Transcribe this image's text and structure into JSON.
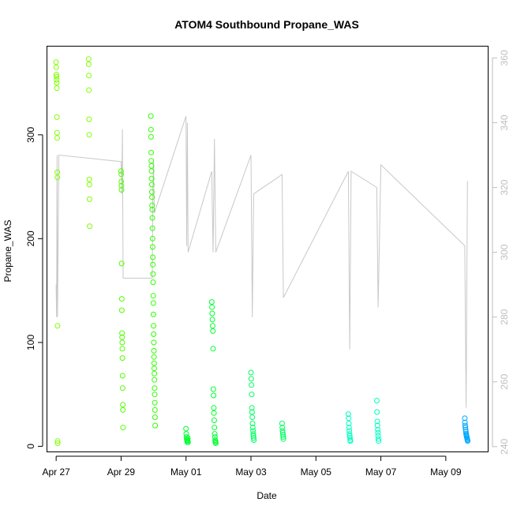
{
  "chart_data": {
    "type": "scatter",
    "title": "ATOM4 Southbound Propane_WAS",
    "xlabel": "Date",
    "ylabel": "Propane_WAS",
    "x_ticks": [
      "Apr 27",
      "Apr 29",
      "May 01",
      "May 03",
      "May 05",
      "May 07",
      "May 09"
    ],
    "y_ticks": [
      "0",
      "100",
      "200",
      "300"
    ],
    "y2_ticks": [
      "240",
      "260",
      "280",
      "300",
      "320",
      "340",
      "360"
    ],
    "xlim": [
      "2018-04-26T17:30",
      "2018-05-10T07:00"
    ],
    "ylim": [
      -5,
      385
    ],
    "y2lim": [
      238.5,
      363.5
    ],
    "grid": false,
    "legend": "none",
    "colors": {
      "axis": "#000000",
      "secondary_axis": "#bebebe",
      "trace": "#c8c8c8"
    },
    "series": [
      {
        "color": "#80ff00",
        "points": [
          [
            "2018-04-27T00:00",
            370
          ],
          [
            "2018-04-27T00:05",
            365
          ],
          [
            "2018-04-27T00:10",
            358
          ],
          [
            "2018-04-27T00:15",
            356
          ],
          [
            "2018-04-27T00:20",
            353
          ],
          [
            "2018-04-27T00:25",
            350
          ],
          [
            "2018-04-27T00:30",
            345
          ],
          [
            "2018-04-27T00:35",
            317
          ],
          [
            "2018-04-27T00:40",
            302
          ],
          [
            "2018-04-27T00:45",
            297
          ],
          [
            "2018-04-27T00:50",
            264
          ],
          [
            "2018-04-27T00:55",
            259
          ],
          [
            "2018-04-27T01:00",
            116
          ],
          [
            "2018-04-27T01:05",
            5
          ],
          [
            "2018-04-27T01:10",
            3
          ],
          [
            "2018-04-28T00:00",
            373
          ],
          [
            "2018-04-28T00:05",
            368
          ],
          [
            "2018-04-28T00:10",
            357
          ],
          [
            "2018-04-28T00:15",
            343
          ],
          [
            "2018-04-28T00:20",
            315
          ],
          [
            "2018-04-28T00:25",
            300
          ],
          [
            "2018-04-28T00:30",
            257
          ],
          [
            "2018-04-28T00:35",
            252
          ],
          [
            "2018-04-28T00:40",
            238
          ],
          [
            "2018-04-28T00:45",
            212
          ]
        ]
      },
      {
        "color": "#50ff00",
        "points": [
          [
            "2018-04-29T00:00",
            265
          ],
          [
            "2018-04-29T00:05",
            262
          ],
          [
            "2018-04-29T00:10",
            255
          ],
          [
            "2018-04-29T00:15",
            251
          ],
          [
            "2018-04-29T00:20",
            247
          ],
          [
            "2018-04-29T00:25",
            176
          ],
          [
            "2018-04-29T00:30",
            142
          ],
          [
            "2018-04-29T00:35",
            131
          ],
          [
            "2018-04-29T00:40",
            109
          ],
          [
            "2018-04-29T00:45",
            105
          ],
          [
            "2018-04-29T00:50",
            100
          ],
          [
            "2018-04-29T00:55",
            94
          ],
          [
            "2018-04-29T01:00",
            85
          ],
          [
            "2018-04-29T01:05",
            68
          ],
          [
            "2018-04-29T01:10",
            56
          ],
          [
            "2018-04-29T01:15",
            40
          ],
          [
            "2018-04-29T01:20",
            35
          ],
          [
            "2018-04-29T01:25",
            18
          ]
        ]
      },
      {
        "color": "#30ff00",
        "points": [
          [
            "2018-04-29T22:00",
            318
          ],
          [
            "2018-04-29T22:05",
            305
          ],
          [
            "2018-04-29T22:10",
            298
          ],
          [
            "2018-04-29T22:15",
            283
          ],
          [
            "2018-04-29T22:20",
            275
          ],
          [
            "2018-04-29T22:25",
            270
          ],
          [
            "2018-04-29T22:30",
            265
          ],
          [
            "2018-04-29T22:35",
            258
          ],
          [
            "2018-04-29T22:40",
            252
          ],
          [
            "2018-04-29T22:45",
            245
          ],
          [
            "2018-04-29T22:50",
            240
          ],
          [
            "2018-04-29T22:55",
            232
          ],
          [
            "2018-04-29T23:00",
            228
          ],
          [
            "2018-04-29T23:05",
            220
          ],
          [
            "2018-04-29T23:10",
            210
          ],
          [
            "2018-04-29T23:15",
            200
          ],
          [
            "2018-04-29T23:20",
            192
          ],
          [
            "2018-04-29T23:25",
            182
          ],
          [
            "2018-04-29T23:30",
            175
          ],
          [
            "2018-04-29T23:35",
            166
          ],
          [
            "2018-04-29T23:40",
            158
          ],
          [
            "2018-04-29T23:45",
            145
          ],
          [
            "2018-04-29T23:50",
            138
          ],
          [
            "2018-04-29T23:55",
            127
          ],
          [
            "2018-04-30T00:00",
            116
          ],
          [
            "2018-04-30T00:05",
            108
          ],
          [
            "2018-04-30T00:10",
            100
          ],
          [
            "2018-04-30T00:15",
            92
          ],
          [
            "2018-04-30T00:20",
            86
          ],
          [
            "2018-04-30T00:25",
            80
          ],
          [
            "2018-04-30T00:30",
            75
          ],
          [
            "2018-04-30T00:35",
            70
          ],
          [
            "2018-04-30T00:40",
            64
          ],
          [
            "2018-04-30T00:45",
            56
          ],
          [
            "2018-04-30T00:50",
            50
          ],
          [
            "2018-04-30T00:55",
            42
          ],
          [
            "2018-04-30T01:00",
            35
          ],
          [
            "2018-04-30T01:05",
            28
          ],
          [
            "2018-04-30T01:10",
            20
          ]
        ]
      },
      {
        "color": "#00ff30",
        "points": [
          [
            "2018-05-01T00:00",
            17
          ],
          [
            "2018-05-01T00:10",
            12
          ],
          [
            "2018-05-01T00:20",
            9
          ],
          [
            "2018-05-01T00:30",
            7
          ],
          [
            "2018-05-01T00:40",
            6
          ],
          [
            "2018-05-01T00:50",
            5
          ],
          [
            "2018-05-01T01:00",
            4
          ],
          [
            "2018-05-01T01:10",
            6
          ],
          [
            "2018-05-01T01:20",
            8
          ],
          [
            "2018-05-01T01:30",
            4
          ],
          [
            "2018-05-01T19:00",
            139
          ],
          [
            "2018-05-01T19:10",
            134
          ],
          [
            "2018-05-01T19:20",
            128
          ],
          [
            "2018-05-01T19:30",
            122
          ],
          [
            "2018-05-01T19:40",
            116
          ],
          [
            "2018-05-01T19:50",
            111
          ],
          [
            "2018-05-01T20:00",
            94
          ],
          [
            "2018-05-01T20:10",
            55
          ],
          [
            "2018-05-01T20:20",
            49
          ],
          [
            "2018-05-01T20:30",
            37
          ],
          [
            "2018-05-01T20:40",
            32
          ],
          [
            "2018-05-01T20:50",
            25
          ],
          [
            "2018-05-01T21:00",
            18
          ],
          [
            "2018-05-01T21:10",
            12
          ],
          [
            "2018-05-01T21:20",
            9
          ],
          [
            "2018-05-01T21:30",
            6
          ],
          [
            "2018-05-01T21:40",
            4
          ],
          [
            "2018-05-01T21:50",
            5
          ],
          [
            "2018-05-01T22:00",
            3
          ]
        ]
      },
      {
        "color": "#00ff60",
        "points": [
          [
            "2018-05-03T00:00",
            71
          ],
          [
            "2018-05-03T00:10",
            65
          ],
          [
            "2018-05-03T00:20",
            59
          ],
          [
            "2018-05-03T00:30",
            50
          ],
          [
            "2018-05-03T00:40",
            37
          ],
          [
            "2018-05-03T00:50",
            33
          ],
          [
            "2018-05-03T01:00",
            28
          ],
          [
            "2018-05-03T01:10",
            22
          ],
          [
            "2018-05-03T01:20",
            18
          ],
          [
            "2018-05-03T01:30",
            15
          ],
          [
            "2018-05-03T01:40",
            12
          ],
          [
            "2018-05-03T01:50",
            10
          ],
          [
            "2018-05-03T02:00",
            8
          ],
          [
            "2018-05-03T02:10",
            6
          ],
          [
            "2018-05-03T23:00",
            22
          ],
          [
            "2018-05-03T23:10",
            18
          ],
          [
            "2018-05-03T23:20",
            15
          ],
          [
            "2018-05-03T23:30",
            13
          ],
          [
            "2018-05-03T23:40",
            11
          ],
          [
            "2018-05-03T23:50",
            9
          ],
          [
            "2018-05-04T00:00",
            7
          ]
        ]
      },
      {
        "color": "#00ffc0",
        "points": [
          [
            "2018-05-06T00:00",
            31
          ],
          [
            "2018-05-06T00:10",
            27
          ],
          [
            "2018-05-06T00:20",
            22
          ],
          [
            "2018-05-06T00:30",
            18
          ],
          [
            "2018-05-06T00:40",
            15
          ],
          [
            "2018-05-06T00:50",
            12
          ],
          [
            "2018-05-06T01:00",
            10
          ],
          [
            "2018-05-06T01:10",
            8
          ],
          [
            "2018-05-06T01:20",
            6
          ],
          [
            "2018-05-06T01:30",
            5
          ],
          [
            "2018-05-06T21:00",
            44
          ],
          [
            "2018-05-06T21:10",
            33
          ],
          [
            "2018-05-06T21:20",
            24
          ],
          [
            "2018-05-06T21:30",
            20
          ],
          [
            "2018-05-06T21:40",
            16
          ],
          [
            "2018-05-06T21:50",
            13
          ],
          [
            "2018-05-06T22:00",
            10
          ],
          [
            "2018-05-06T22:10",
            7
          ],
          [
            "2018-05-06T22:20",
            5
          ]
        ]
      },
      {
        "color": "#00a8ff",
        "points": [
          [
            "2018-05-09T14:00",
            27
          ],
          [
            "2018-05-09T14:10",
            23
          ],
          [
            "2018-05-09T14:20",
            20
          ],
          [
            "2018-05-09T14:30",
            18
          ],
          [
            "2018-05-09T14:40",
            16
          ],
          [
            "2018-05-09T14:50",
            14
          ],
          [
            "2018-05-09T15:00",
            12
          ],
          [
            "2018-05-09T15:10",
            11
          ],
          [
            "2018-05-09T15:20",
            10
          ],
          [
            "2018-05-09T15:30",
            9
          ],
          [
            "2018-05-09T15:40",
            8
          ],
          [
            "2018-05-09T15:50",
            7
          ],
          [
            "2018-05-09T16:00",
            6
          ],
          [
            "2018-05-09T16:10",
            5
          ]
        ]
      }
    ],
    "trace": {
      "axis": "y2",
      "points": [
        [
          "2018-04-27T00:00",
          290
        ],
        [
          "2018-04-27T00:20",
          280
        ],
        [
          "2018-04-27T00:40",
          330
        ],
        [
          "2018-04-27T01:00",
          280
        ],
        [
          "2018-04-27T02:00",
          330
        ],
        [
          "2018-04-29T00:00",
          328
        ],
        [
          "2018-04-29T00:30",
          318
        ],
        [
          "2018-04-29T01:00",
          338
        ],
        [
          "2018-04-29T01:30",
          292
        ],
        [
          "2018-04-29T23:00",
          292
        ],
        [
          "2018-04-29T23:30",
          320
        ],
        [
          "2018-04-30T00:00",
          328
        ],
        [
          "2018-04-30T00:30",
          312
        ],
        [
          "2018-05-01T00:00",
          342
        ],
        [
          "2018-05-01T00:30",
          302
        ],
        [
          "2018-05-01T01:00",
          340
        ],
        [
          "2018-05-01T01:30",
          300
        ],
        [
          "2018-05-01T19:00",
          325
        ],
        [
          "2018-05-01T20:00",
          300
        ],
        [
          "2018-05-01T21:00",
          335
        ],
        [
          "2018-05-01T22:00",
          300
        ],
        [
          "2018-05-03T00:00",
          330
        ],
        [
          "2018-05-03T01:00",
          280
        ],
        [
          "2018-05-03T02:00",
          318
        ],
        [
          "2018-05-03T23:00",
          324
        ],
        [
          "2018-05-04T00:00",
          286
        ],
        [
          "2018-05-06T00:00",
          325
        ],
        [
          "2018-05-06T01:00",
          270
        ],
        [
          "2018-05-06T02:00",
          325
        ],
        [
          "2018-05-06T21:00",
          320
        ],
        [
          "2018-05-06T22:00",
          283
        ],
        [
          "2018-05-07T00:00",
          327
        ],
        [
          "2018-05-09T14:00",
          302
        ],
        [
          "2018-05-09T15:00",
          252
        ],
        [
          "2018-05-09T16:00",
          322
        ]
      ]
    }
  }
}
